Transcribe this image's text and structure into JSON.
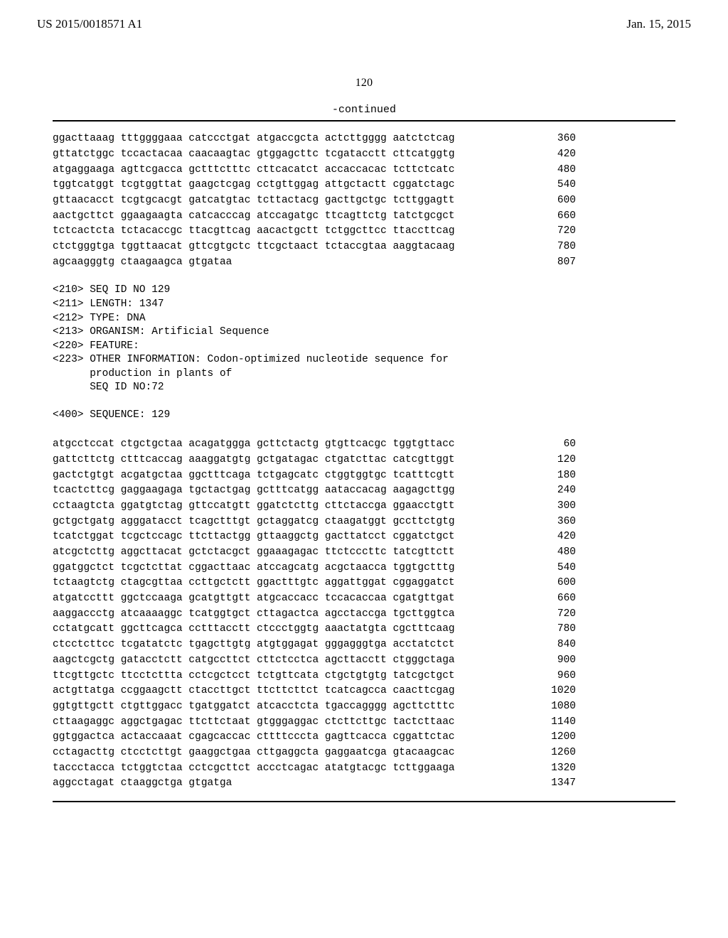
{
  "header": {
    "publication_number": "US 2015/0018571 A1",
    "publication_date": "Jan. 15, 2015"
  },
  "page_number": "120",
  "continued_label": "-continued",
  "blocks": [
    {
      "type": "seq",
      "rows": [
        {
          "g": [
            "ggacttaaag",
            "tttggggaaa",
            "catccctgat",
            "atgaccgcta",
            "actcttgggg",
            "aatctctcag"
          ],
          "pos": "360"
        },
        {
          "g": [
            "gttatctggc",
            "tccactacaa",
            "caacaagtac",
            "gtggagcttc",
            "tcgatacctt",
            "cttcatggtg"
          ],
          "pos": "420"
        },
        {
          "g": [
            "atgaggaaga",
            "agttcgacca",
            "gctttctttc",
            "cttcacatct",
            "accaccacac",
            "tcttctcatc"
          ],
          "pos": "480"
        },
        {
          "g": [
            "tggtcatggt",
            "tcgtggttat",
            "gaagctcgag",
            "cctgttggag",
            "attgctactt",
            "cggatctagc"
          ],
          "pos": "540"
        },
        {
          "g": [
            "gttaacacct",
            "tcgtgcacgt",
            "gatcatgtac",
            "tcttactacg",
            "gacttgctgc",
            "tcttggagtt"
          ],
          "pos": "600"
        },
        {
          "g": [
            "aactgcttct",
            "ggaagaagta",
            "catcacccag",
            "atccagatgc",
            "ttcagttctg",
            "tatctgcgct"
          ],
          "pos": "660"
        },
        {
          "g": [
            "tctcactcta",
            "tctacaccgc",
            "ttacgttcag",
            "aacactgctt",
            "tctggcttcc",
            "ttaccttcag"
          ],
          "pos": "720"
        },
        {
          "g": [
            "ctctgggtga",
            "tggttaacat",
            "gttcgtgctc",
            "ttcgctaact",
            "tctaccgtaa",
            "aaggtacaag"
          ],
          "pos": "780"
        },
        {
          "g": [
            "agcaagggtg",
            "ctaagaagca",
            "gtgataa",
            "",
            "",
            ""
          ],
          "pos": "807"
        }
      ]
    },
    {
      "type": "meta",
      "lines": [
        "<210> SEQ ID NO 129",
        "<211> LENGTH: 1347",
        "<212> TYPE: DNA",
        "<213> ORGANISM: Artificial Sequence",
        "<220> FEATURE:",
        "<223> OTHER INFORMATION: Codon-optimized nucleotide sequence for",
        "      production in plants of",
        "      SEQ ID NO:72",
        "",
        "<400> SEQUENCE: 129"
      ]
    },
    {
      "type": "seq",
      "rows": [
        {
          "g": [
            "atgcctccat",
            "ctgctgctaa",
            "acagatggga",
            "gcttctactg",
            "gtgttcacgc",
            "tggtgttacc"
          ],
          "pos": "60"
        },
        {
          "g": [
            "gattcttctg",
            "ctttcaccag",
            "aaaggatgtg",
            "gctgatagac",
            "ctgatcttac",
            "catcgttggt"
          ],
          "pos": "120"
        },
        {
          "g": [
            "gactctgtgt",
            "acgatgctaa",
            "ggctttcaga",
            "tctgagcatc",
            "ctggtggtgc",
            "tcatttcgtt"
          ],
          "pos": "180"
        },
        {
          "g": [
            "tcactcttcg",
            "gaggaagaga",
            "tgctactgag",
            "gctttcatgg",
            "aataccacag",
            "aagagcttgg"
          ],
          "pos": "240"
        },
        {
          "g": [
            "cctaagtcta",
            "ggatgtctag",
            "gttccatgtt",
            "ggatctcttg",
            "cttctaccga",
            "ggaacctgtt"
          ],
          "pos": "300"
        },
        {
          "g": [
            "gctgctgatg",
            "agggatacct",
            "tcagctttgt",
            "gctaggatcg",
            "ctaagatggt",
            "gccttctgtg"
          ],
          "pos": "360"
        },
        {
          "g": [
            "tcatctggat",
            "tcgctccagc",
            "ttcttactgg",
            "gttaaggctg",
            "gacttatcct",
            "cggatctgct"
          ],
          "pos": "420"
        },
        {
          "g": [
            "atcgctcttg",
            "aggcttacat",
            "gctctacgct",
            "ggaaagagac",
            "ttctcccttc",
            "tatcgttctt"
          ],
          "pos": "480"
        },
        {
          "g": [
            "ggatggctct",
            "tcgctcttat",
            "cggacttaac",
            "atccagcatg",
            "acgctaacca",
            "tggtgctttg"
          ],
          "pos": "540"
        },
        {
          "g": [
            "tctaagtctg",
            "ctagcgttaa",
            "ccttgctctt",
            "ggactttgtc",
            "aggattggat",
            "cggaggatct"
          ],
          "pos": "600"
        },
        {
          "g": [
            "atgatccttt",
            "ggctccaaga",
            "gcatgttgtt",
            "atgcaccacc",
            "tccacaccaa",
            "cgatgttgat"
          ],
          "pos": "660"
        },
        {
          "g": [
            "aaggaccctg",
            "atcaaaaggc",
            "tcatggtgct",
            "cttagactca",
            "agcctaccga",
            "tgcttggtca"
          ],
          "pos": "720"
        },
        {
          "g": [
            "cctatgcatt",
            "ggcttcagca",
            "cctttacctt",
            "ctccctggtg",
            "aaactatgta",
            "cgctttcaag"
          ],
          "pos": "780"
        },
        {
          "g": [
            "ctcctcttcc",
            "tcgatatctc",
            "tgagcttgtg",
            "atgtggagat",
            "gggagggtga",
            "acctatctct"
          ],
          "pos": "840"
        },
        {
          "g": [
            "aagctcgctg",
            "gatacctctt",
            "catgccttct",
            "cttctcctca",
            "agcttacctt",
            "ctgggctaga"
          ],
          "pos": "900"
        },
        {
          "g": [
            "ttcgttgctc",
            "ttcctcttta",
            "cctcgctcct",
            "tctgttcata",
            "ctgctgtgtg",
            "tatcgctgct"
          ],
          "pos": "960"
        },
        {
          "g": [
            "actgttatga",
            "ccggaagctt",
            "ctaccttgct",
            "ttcttcttct",
            "tcatcagcca",
            "caacttcgag"
          ],
          "pos": "1020"
        },
        {
          "g": [
            "ggtgttgctt",
            "ctgttggacc",
            "tgatggatct",
            "atcacctcta",
            "tgaccagggg",
            "agcttctttc"
          ],
          "pos": "1080"
        },
        {
          "g": [
            "cttaagaggc",
            "aggctgagac",
            "ttcttctaat",
            "gtgggaggac",
            "ctcttcttgc",
            "tactcttaac"
          ],
          "pos": "1140"
        },
        {
          "g": [
            "ggtggactca",
            "actaccaaat",
            "cgagcaccac",
            "cttttcccta",
            "gagttcacca",
            "cggattctac"
          ],
          "pos": "1200"
        },
        {
          "g": [
            "cctagacttg",
            "ctcctcttgt",
            "gaaggctgaa",
            "cttgaggcta",
            "gaggaatcga",
            "gtacaagcac"
          ],
          "pos": "1260"
        },
        {
          "g": [
            "taccctacca",
            "tctggtctaa",
            "cctcgcttct",
            "accctcagac",
            "atatgtacgc",
            "tcttggaaga"
          ],
          "pos": "1320"
        },
        {
          "g": [
            "aggcctagat",
            "ctaaggctga",
            "gtgatga",
            "",
            "",
            ""
          ],
          "pos": "1347"
        }
      ]
    }
  ]
}
